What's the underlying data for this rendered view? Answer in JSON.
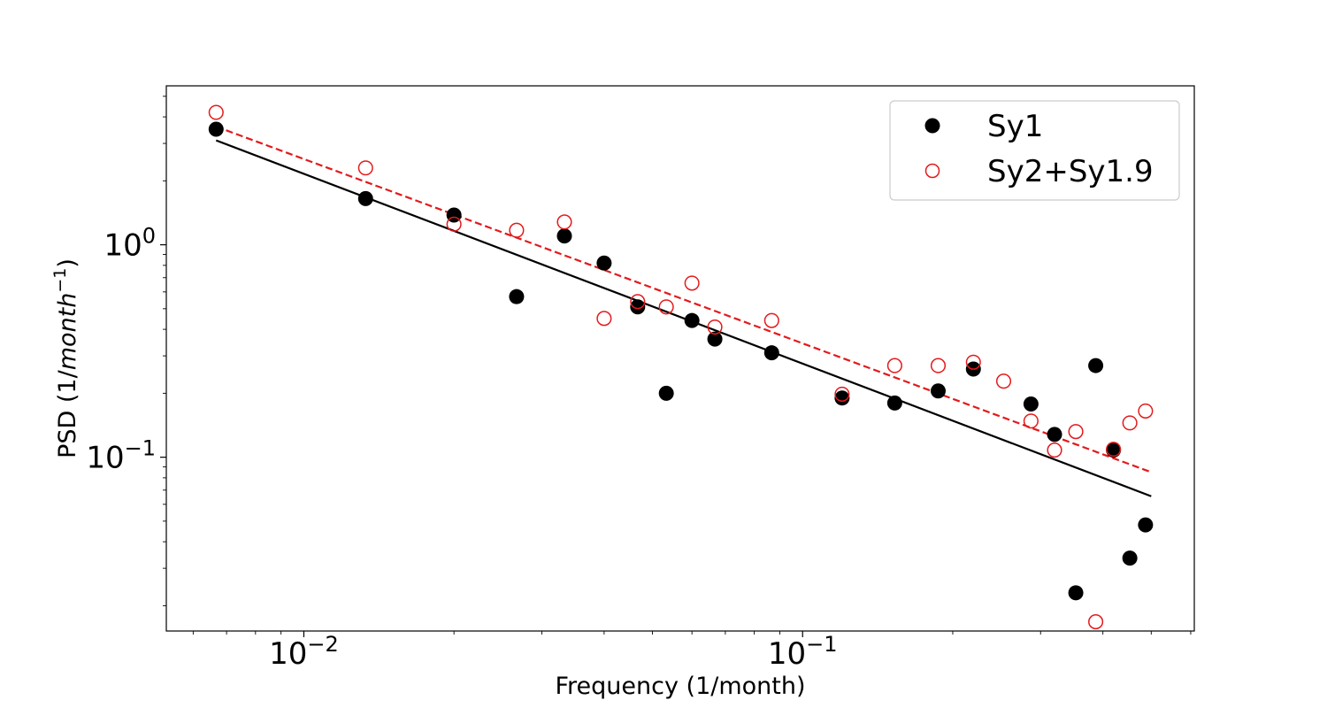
{
  "chart_data": {
    "type": "scatter",
    "xscale": "log",
    "yscale": "log",
    "xlim": [
      0.0053,
      0.61
    ],
    "ylim": [
      0.0152,
      5.6
    ],
    "xlabel": "Frequency (1/month)",
    "ylabel_prefix": "PSD (1/",
    "ylabel_italic": "month",
    "ylabel_sup": "−1",
    "ylabel_suffix": ")",
    "xticks": [
      {
        "value": 0.01,
        "base": "10",
        "exp": "−2"
      },
      {
        "value": 0.1,
        "base": "10",
        "exp": "−1"
      }
    ],
    "yticks": [
      {
        "value": 0.1,
        "base": "10",
        "exp": "−1"
      },
      {
        "value": 1.0,
        "base": "10",
        "exp": "0"
      }
    ],
    "legend_position": "upper-right",
    "series": [
      {
        "name": "Sy1",
        "marker": "filled-circle",
        "color": "#000000",
        "points": [
          [
            0.00667,
            3.5
          ],
          [
            0.0133,
            1.65
          ],
          [
            0.02,
            1.38
          ],
          [
            0.0267,
            0.57
          ],
          [
            0.0333,
            1.1
          ],
          [
            0.04,
            0.82
          ],
          [
            0.0467,
            0.51
          ],
          [
            0.0533,
            0.2
          ],
          [
            0.06,
            0.44
          ],
          [
            0.0667,
            0.36
          ],
          [
            0.0867,
            0.31
          ],
          [
            0.12,
            0.19
          ],
          [
            0.153,
            0.18
          ],
          [
            0.187,
            0.205
          ],
          [
            0.22,
            0.26
          ],
          [
            0.287,
            0.178
          ],
          [
            0.32,
            0.128
          ],
          [
            0.353,
            0.023
          ],
          [
            0.387,
            0.27
          ],
          [
            0.42,
            0.108
          ],
          [
            0.453,
            0.0335
          ],
          [
            0.487,
            0.048
          ]
        ]
      },
      {
        "name": "Sy2+Sy1.9",
        "marker": "open-circle",
        "color": "#e31a1c",
        "points": [
          [
            0.00667,
            4.2
          ],
          [
            0.0133,
            2.3
          ],
          [
            0.02,
            1.25
          ],
          [
            0.0267,
            1.17
          ],
          [
            0.0333,
            1.28
          ],
          [
            0.04,
            0.45
          ],
          [
            0.0467,
            0.54
          ],
          [
            0.0533,
            0.51
          ],
          [
            0.06,
            0.66
          ],
          [
            0.0667,
            0.41
          ],
          [
            0.0867,
            0.44
          ],
          [
            0.12,
            0.198
          ],
          [
            0.153,
            0.27
          ],
          [
            0.187,
            0.27
          ],
          [
            0.22,
            0.28
          ],
          [
            0.253,
            0.228
          ],
          [
            0.287,
            0.148
          ],
          [
            0.32,
            0.108
          ],
          [
            0.353,
            0.132
          ],
          [
            0.387,
            0.0168
          ],
          [
            0.42,
            0.109
          ],
          [
            0.453,
            0.145
          ],
          [
            0.487,
            0.165
          ]
        ]
      }
    ],
    "fit_lines": [
      {
        "name": "Sy1 fit",
        "style": "solid",
        "color": "#000000",
        "x": [
          0.00667,
          0.5
        ],
        "y": [
          3.1,
          0.0655
        ]
      },
      {
        "name": "Sy2+Sy1.9 fit",
        "style": "dashed",
        "color": "#e31a1c",
        "x": [
          0.00667,
          0.5
        ],
        "y": [
          3.6,
          0.085
        ]
      }
    ]
  }
}
